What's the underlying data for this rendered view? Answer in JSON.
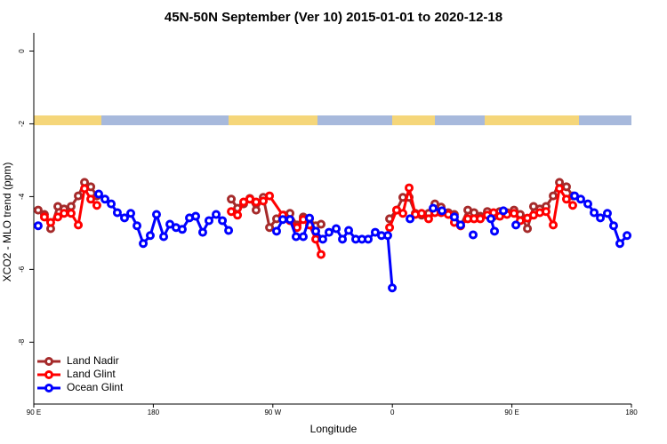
{
  "chart_data": {
    "type": "line",
    "title": "45N-50N September (Ver 10)   2015-01-01 to 2020-12-18",
    "x_label": "Longitude",
    "y_label": "XCO2 - MLO trend (ppm)",
    "xlim": [
      90,
      540
    ],
    "xticks": [
      {
        "value": 90,
        "label": "90 E"
      },
      180,
      {
        "value": 270,
        "label": "90 W"
      },
      {
        "value": 360,
        "label": "0"
      },
      {
        "value": 450,
        "label": "90 E"
      },
      {
        "value": 540,
        "label": "180"
      }
    ],
    "ylim": [
      -9.7,
      0.5
    ],
    "yticks": [
      0,
      -2,
      -4,
      -6,
      -8
    ],
    "grid": false,
    "legend": "bottom-left",
    "series": [
      {
        "name": "Land Nadir",
        "color": "#a52a2a",
        "x": [
          93.3,
          98.0,
          102.7,
          108.1,
          112.8,
          118.1,
          123.5,
          128.2,
          132.9,
          137.5,
          null,
          238.7,
          243.4,
          248.0,
          252.7,
          257.4,
          262.8,
          267.5,
          272.8,
          278.2,
          282.9,
          288.2,
          292.9,
          297.6,
          302.3,
          306.3,
          null,
          357.9,
          363.2,
          367.9,
          372.6,
          377.3,
          382.0,
          387.3,
          392.0,
          396.7,
          402.1,
          406.7,
          411.4,
          416.8,
          421.5,
          426.2,
          431.5,
          436.2,
          440.9,
          446.3,
          451.6,
          456.3,
          461.7,
          466.3,
          471.0,
          475.7,
          481.1,
          485.8,
          491.1,
          495.8
        ],
        "values": [
          -4.37,
          -4.49,
          -4.88,
          -4.27,
          -4.34,
          -4.27,
          -3.98,
          -3.61,
          -3.73,
          -3.98,
          null,
          -4.07,
          -4.32,
          -4.2,
          -4.05,
          -4.37,
          -4.02,
          -4.85,
          -4.61,
          -4.51,
          -4.46,
          -4.78,
          -4.56,
          -4.61,
          -4.8,
          -4.76,
          null,
          -4.61,
          -4.37,
          -4.02,
          -4.02,
          -4.46,
          -4.51,
          -4.46,
          -4.2,
          -4.29,
          -4.44,
          -4.49,
          -4.8,
          -4.37,
          -4.44,
          -4.54,
          -4.41,
          -4.54,
          -4.41,
          -4.44,
          -4.37,
          -4.49,
          -4.88,
          -4.27,
          -4.34,
          -4.27,
          -3.98,
          -3.61,
          -3.73,
          -3.98
        ]
      },
      {
        "name": "Land Glint",
        "color": "#ff0000",
        "x": [
          98.0,
          102.7,
          108.1,
          112.8,
          118.1,
          123.5,
          128.2,
          132.9,
          137.5,
          null,
          238.7,
          243.4,
          248.0,
          252.7,
          257.4,
          262.8,
          267.5,
          277.5,
          282.9,
          288.2,
          292.9,
          297.6,
          302.3,
          306.3,
          null,
          357.9,
          363.2,
          367.9,
          372.6,
          377.3,
          382.0,
          387.3,
          392.0,
          396.7,
          402.1,
          406.7,
          411.4,
          416.8,
          421.5,
          426.2,
          431.5,
          436.2,
          440.9,
          446.3,
          451.6,
          456.3,
          461.7,
          466.3,
          471.0,
          475.7,
          481.1,
          485.8,
          491.1,
          495.8
        ],
        "values": [
          -4.56,
          -4.71,
          -4.56,
          -4.46,
          -4.46,
          -4.78,
          -3.78,
          -4.07,
          -4.24,
          null,
          -4.41,
          -4.51,
          -4.15,
          -4.07,
          -4.15,
          -4.12,
          -3.98,
          -4.51,
          -4.66,
          -4.85,
          -4.63,
          -4.78,
          -5.17,
          -5.59,
          null,
          -4.85,
          -4.37,
          -4.46,
          -3.76,
          -4.49,
          -4.46,
          -4.61,
          -4.44,
          -4.44,
          -4.49,
          -4.71,
          -4.8,
          -4.61,
          -4.61,
          -4.61,
          -4.51,
          -4.44,
          -4.54,
          -4.49,
          -4.46,
          -4.66,
          -4.59,
          -4.51,
          -4.44,
          -4.41,
          -4.78,
          -3.78,
          -4.07,
          -4.24
        ]
      },
      {
        "name": "Ocean Glint",
        "color": "#0000ff",
        "x": [
          93.3,
          null,
          138.9,
          143.6,
          148.3,
          152.9,
          158.3,
          163.0,
          167.7,
          172.4,
          177.7,
          182.4,
          187.8,
          192.5,
          197.1,
          201.8,
          207.2,
          211.9,
          217.2,
          221.9,
          227.3,
          232.0,
          236.7,
          null,
          272.8,
          277.5,
          282.9,
          287.5,
          292.9,
          297.6,
          302.3,
          307.6,
          312.3,
          317.7,
          322.4,
          327.1,
          332.4,
          337.1,
          341.8,
          347.1,
          351.8,
          356.5,
          359.9,
          null,
          373.3,
          null,
          390.7,
          397.4,
          null,
          406.7,
          411.4,
          null,
          420.8,
          null,
          434.2,
          436.9,
          null,
          443.6,
          null,
          453.0,
          null,
          497.2,
          501.8,
          507.2,
          511.9,
          516.6,
          521.9,
          526.6,
          531.3,
          536.7
        ],
        "values": [
          -4.8,
          null,
          -3.93,
          -4.07,
          -4.2,
          -4.44,
          -4.585,
          -4.46,
          -4.8,
          -5.29,
          -5.07,
          -4.49,
          -5.1,
          -4.76,
          -4.85,
          -4.9,
          -4.585,
          -4.54,
          -4.98,
          -4.66,
          -4.49,
          -4.66,
          -4.93,
          null,
          -4.95,
          -4.63,
          -4.63,
          -5.1,
          -5.1,
          -4.59,
          -4.95,
          -5.17,
          -4.98,
          -4.88,
          -5.17,
          -4.93,
          -5.17,
          -5.17,
          -5.17,
          -4.98,
          -5.07,
          -5.07,
          -6.51,
          null,
          -4.61,
          null,
          -4.32,
          -4.39,
          null,
          -4.56,
          -4.78,
          null,
          -5.05,
          null,
          -4.61,
          -4.95,
          null,
          -4.39,
          null,
          -4.78,
          null,
          -3.98,
          -4.07,
          -4.2,
          -4.44,
          -4.585,
          -4.46,
          -4.8,
          -5.29,
          -5.07
        ]
      }
    ]
  }
}
